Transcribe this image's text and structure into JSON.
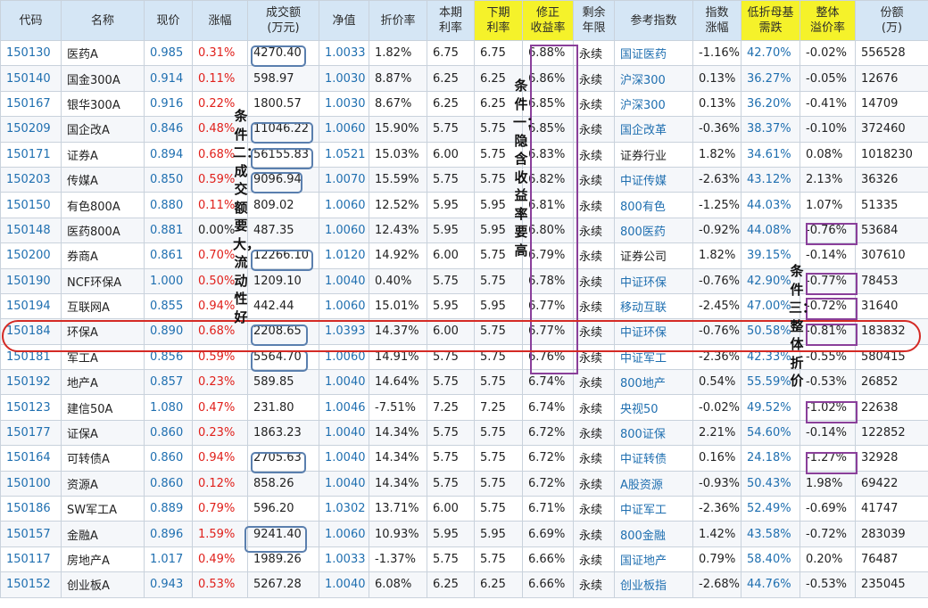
{
  "headers": [
    "代码",
    "名称",
    "现价",
    "涨幅",
    "成交额\n(万元)",
    "净值",
    "折价率",
    "本期\n利率",
    "下期\n利率",
    "修正\n收益率",
    "剩余\n年限",
    "参考指数",
    "指数\n涨幅",
    "低折母基\n需跌",
    "整体\n溢价率",
    "份额\n(万)"
  ],
  "highlight_columns": [
    8,
    9,
    13,
    14
  ],
  "rows": [
    [
      "150130",
      "医药A",
      "0.985",
      "0.31%",
      "4270.40",
      "1.0033",
      "1.82%",
      "6.75",
      "6.75",
      "6.88%",
      "永续",
      "国证医药",
      "-1.16%",
      "42.70%",
      "-0.02%",
      "556528"
    ],
    [
      "150140",
      "国金300A",
      "0.914",
      "0.11%",
      "598.97",
      "1.0030",
      "8.87%",
      "6.25",
      "6.25",
      "6.86%",
      "永续",
      "沪深300",
      "0.13%",
      "36.27%",
      "-0.05%",
      "12676"
    ],
    [
      "150167",
      "银华300A",
      "0.916",
      "0.22%",
      "1800.57",
      "1.0030",
      "8.67%",
      "6.25",
      "6.25",
      "6.85%",
      "永续",
      "沪深300",
      "0.13%",
      "36.20%",
      "-0.41%",
      "14709"
    ],
    [
      "150209",
      "国企改A",
      "0.846",
      "0.48%",
      "11046.22",
      "1.0060",
      "15.90%",
      "5.75",
      "5.75",
      "6.85%",
      "永续",
      "国企改革",
      "-0.36%",
      "38.37%",
      "-0.10%",
      "372460"
    ],
    [
      "150171",
      "证券A",
      "0.894",
      "0.68%",
      "56155.83",
      "1.0521",
      "15.03%",
      "6.00",
      "5.75",
      "6.83%",
      "永续",
      "证券行业",
      "1.82%",
      "34.61%",
      "0.08%",
      "1018230"
    ],
    [
      "150203",
      "传媒A",
      "0.850",
      "0.59%",
      "9096.94",
      "1.0070",
      "15.59%",
      "5.75",
      "5.75",
      "6.82%",
      "永续",
      "中证传媒",
      "-2.63%",
      "43.12%",
      "2.13%",
      "36326"
    ],
    [
      "150150",
      "有色800A",
      "0.880",
      "0.11%",
      "809.02",
      "1.0060",
      "12.52%",
      "5.95",
      "5.95",
      "6.81%",
      "永续",
      "800有色",
      "-1.25%",
      "44.03%",
      "1.07%",
      "51335"
    ],
    [
      "150148",
      "医药800A",
      "0.881",
      "0.00%",
      "487.35",
      "1.0060",
      "12.43%",
      "5.95",
      "5.95",
      "6.80%",
      "永续",
      "800医药",
      "-0.92%",
      "44.08%",
      "-0.76%",
      "53684"
    ],
    [
      "150200",
      "券商A",
      "0.861",
      "0.70%",
      "12266.10",
      "1.0120",
      "14.92%",
      "6.00",
      "5.75",
      "6.79%",
      "永续",
      "证券公司",
      "1.82%",
      "39.15%",
      "-0.14%",
      "307610"
    ],
    [
      "150190",
      "NCF环保A",
      "1.000",
      "0.50%",
      "1209.10",
      "1.0040",
      "0.40%",
      "5.75",
      "5.75",
      "6.78%",
      "永续",
      "中证环保",
      "-0.76%",
      "42.90%",
      "-0.77%",
      "78453"
    ],
    [
      "150194",
      "互联网A",
      "0.855",
      "0.94%",
      "442.44",
      "1.0060",
      "15.01%",
      "5.95",
      "5.95",
      "6.77%",
      "永续",
      "移动互联",
      "-2.45%",
      "47.00%",
      "-0.72%",
      "31640"
    ],
    [
      "150184",
      "环保A",
      "0.890",
      "0.68%",
      "2208.65",
      "1.0393",
      "14.37%",
      "6.00",
      "5.75",
      "6.77%",
      "永续",
      "中证环保",
      "-0.76%",
      "50.58%",
      "-0.81%",
      "183832"
    ],
    [
      "150181",
      "军工A",
      "0.856",
      "0.59%",
      "5564.70",
      "1.0060",
      "14.91%",
      "5.75",
      "5.75",
      "6.76%",
      "永续",
      "中证军工",
      "-2.36%",
      "42.33%",
      "-0.55%",
      "580415"
    ],
    [
      "150192",
      "地产A",
      "0.857",
      "0.23%",
      "589.85",
      "1.0040",
      "14.64%",
      "5.75",
      "5.75",
      "6.74%",
      "永续",
      "800地产",
      "0.54%",
      "55.59%",
      "-0.53%",
      "26852"
    ],
    [
      "150123",
      "建信50A",
      "1.080",
      "0.47%",
      "231.80",
      "1.0046",
      "-7.51%",
      "7.25",
      "7.25",
      "6.74%",
      "永续",
      "央视50",
      "-0.02%",
      "49.52%",
      "-1.02%",
      "22638"
    ],
    [
      "150177",
      "证保A",
      "0.860",
      "0.23%",
      "1863.23",
      "1.0040",
      "14.34%",
      "5.75",
      "5.75",
      "6.72%",
      "永续",
      "800证保",
      "2.21%",
      "54.60%",
      "-0.14%",
      "122852"
    ],
    [
      "150164",
      "可转债A",
      "0.860",
      "0.94%",
      "2705.63",
      "1.0040",
      "14.34%",
      "5.75",
      "5.75",
      "6.72%",
      "永续",
      "中证转债",
      "0.16%",
      "24.18%",
      "-1.27%",
      "32928"
    ],
    [
      "150100",
      "资源A",
      "0.860",
      "0.12%",
      "858.26",
      "1.0040",
      "14.34%",
      "5.75",
      "5.75",
      "6.72%",
      "永续",
      "A股资源",
      "-0.93%",
      "50.43%",
      "1.98%",
      "69422"
    ],
    [
      "150186",
      "SW军工A",
      "0.889",
      "0.79%",
      "596.20",
      "1.0302",
      "13.71%",
      "6.00",
      "5.75",
      "6.71%",
      "永续",
      "中证军工",
      "-2.36%",
      "52.49%",
      "-0.69%",
      "41747"
    ],
    [
      "150157",
      "金融A",
      "0.896",
      "1.59%",
      "9241.40",
      "1.0060",
      "10.93%",
      "5.95",
      "5.95",
      "6.69%",
      "永续",
      "800金融",
      "1.42%",
      "43.58%",
      "-0.72%",
      "283039"
    ],
    [
      "150117",
      "房地产A",
      "1.017",
      "0.49%",
      "1989.26",
      "1.0033",
      "-1.37%",
      "5.75",
      "5.75",
      "6.66%",
      "永续",
      "国证地产",
      "0.79%",
      "58.40%",
      "0.20%",
      "76487"
    ],
    [
      "150152",
      "创业板A",
      "0.943",
      "0.53%",
      "5267.28",
      "1.0040",
      "6.08%",
      "6.25",
      "6.25",
      "6.66%",
      "永续",
      "创业板指",
      "-2.68%",
      "44.76%",
      "-0.53%",
      "235045"
    ]
  ],
  "annotations": {
    "cond1": "条件一：隐含收益率要高",
    "cond2": "条件二：成交额要大，流动性好",
    "cond3": "条件三：整体折价"
  },
  "colors": {
    "header_bg": "#d5e6f5",
    "header_highlight": "#f5f22a",
    "link_blue": "#1f6fb0",
    "up_red": "#e0201b",
    "box_blue": "#5a7fae",
    "box_purple": "#8a3f9a",
    "ring_red": "#d42a25"
  }
}
